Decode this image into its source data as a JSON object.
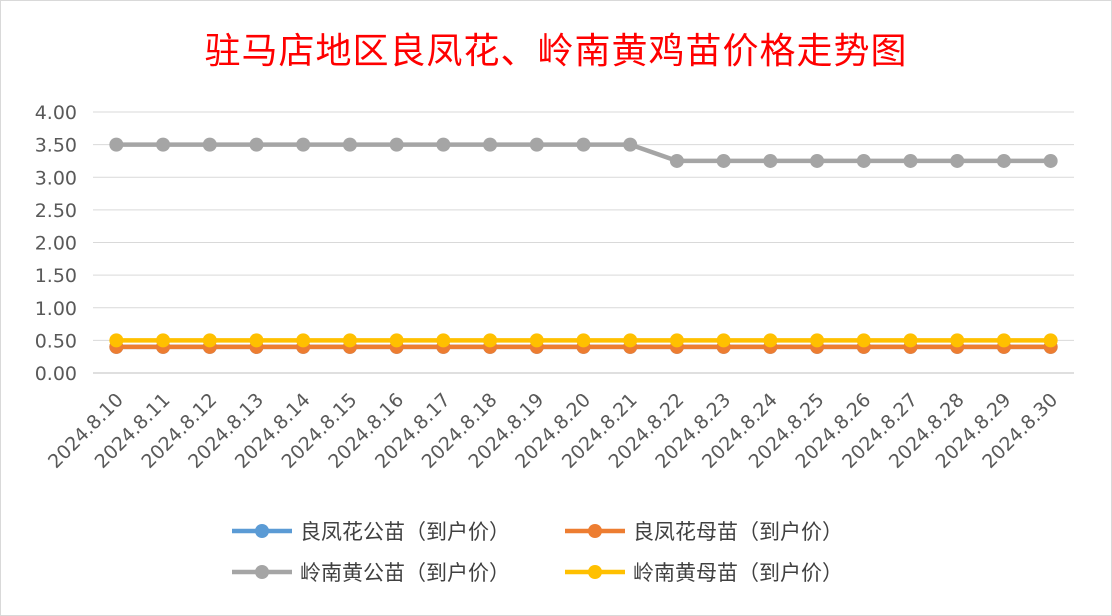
{
  "chart_data": {
    "type": "line",
    "title": "驻马店地区良凤花、岭南黄鸡苗价格走势图",
    "categories": [
      "2024.8.10",
      "2024.8.11",
      "2024.8.12",
      "2024.8.13",
      "2024.8.14",
      "2024.8.15",
      "2024.8.16",
      "2024.8.17",
      "2024.8.18",
      "2024.8.19",
      "2024.8.20",
      "2024.8.21",
      "2024.8.22",
      "2024.8.23",
      "2024.8.24",
      "2024.8.25",
      "2024.8.26",
      "2024.8.27",
      "2024.8.28",
      "2024.8.29",
      "2024.8.30"
    ],
    "ylim": [
      0,
      4
    ],
    "yticks": [
      "0.00",
      "0.50",
      "1.00",
      "1.50",
      "2.00",
      "2.50",
      "3.00",
      "3.50",
      "4.00"
    ],
    "grid": true,
    "legend_position": "bottom",
    "series": [
      {
        "name": "良凤花公苗（到户价）",
        "color": "#5b9bd5",
        "values": [
          0.4,
          0.4,
          0.4,
          0.4,
          0.4,
          0.4,
          0.4,
          0.4,
          0.4,
          0.4,
          0.4,
          0.4,
          0.4,
          0.4,
          0.4,
          0.4,
          0.4,
          0.4,
          0.4,
          0.4,
          0.4
        ]
      },
      {
        "name": "良凤花母苗（到户价）",
        "color": "#ed7d31",
        "values": [
          0.4,
          0.4,
          0.4,
          0.4,
          0.4,
          0.4,
          0.4,
          0.4,
          0.4,
          0.4,
          0.4,
          0.4,
          0.4,
          0.4,
          0.4,
          0.4,
          0.4,
          0.4,
          0.4,
          0.4,
          0.4
        ]
      },
      {
        "name": "岭南黄公苗（到户价）",
        "color": "#a5a5a5",
        "values": [
          3.5,
          3.5,
          3.5,
          3.5,
          3.5,
          3.5,
          3.5,
          3.5,
          3.5,
          3.5,
          3.5,
          3.5,
          3.25,
          3.25,
          3.25,
          3.25,
          3.25,
          3.25,
          3.25,
          3.25,
          3.25
        ]
      },
      {
        "name": "岭南黄母苗（到户价）",
        "color": "#ffc000",
        "values": [
          0.5,
          0.5,
          0.5,
          0.5,
          0.5,
          0.5,
          0.5,
          0.5,
          0.5,
          0.5,
          0.5,
          0.5,
          0.5,
          0.5,
          0.5,
          0.5,
          0.5,
          0.5,
          0.5,
          0.5,
          0.5
        ]
      }
    ]
  }
}
